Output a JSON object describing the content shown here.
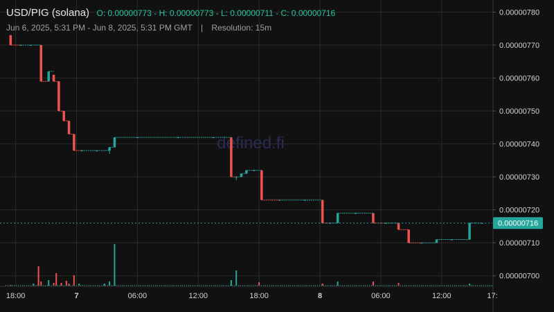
{
  "header": {
    "symbol": "USD/PIG (solana)",
    "ohlc": "O: 0.00000773 - H: 0.00000773 - L: 0.00000711 - C: 0.00000716",
    "range": "Jun 6, 2025, 5:31 PM - Jun 8, 2025, 5:31 PM GMT",
    "separator": "|",
    "resolution": "Resolution: 15m"
  },
  "watermark": "defined.fi",
  "last_price_label": "0.00000716",
  "colors": {
    "up": "#26a69a",
    "down": "#ef5350",
    "background": "#111111",
    "grid": "#2a2a2a"
  },
  "chart_data": {
    "type": "candlestick",
    "x_unit": "hours after Jun 6, 2025 18:00 GMT",
    "xlim": [
      -1.0,
      47.0
    ],
    "ylim": [
      6.97e-06,
      7.82e-06
    ],
    "y_ticks": [
      "0.00000700",
      "0.00000710",
      "0.00000720",
      "0.00000730",
      "0.00000740",
      "0.00000750",
      "0.00000760",
      "0.00000770",
      "0.00000780"
    ],
    "x_ticks": [
      {
        "label": "18:00",
        "t": 0
      },
      {
        "label": "7",
        "t": 6,
        "bold": true
      },
      {
        "label": "06:00",
        "t": 12
      },
      {
        "label": "12:00",
        "t": 18
      },
      {
        "label": "18:00",
        "t": 24
      },
      {
        "label": "8",
        "t": 30,
        "bold": true
      },
      {
        "label": "06:00",
        "t": 36
      },
      {
        "label": "12:00",
        "t": 42
      },
      {
        "label": "17:",
        "t": 47
      }
    ],
    "last_price": 7.16e-06,
    "candles": [
      {
        "t": -0.5,
        "o": 7.73,
        "c": 7.7,
        "h": 7.73,
        "l": 7.7
      },
      {
        "t": 0.5,
        "o": 7.7,
        "c": 7.7,
        "h": 7.7,
        "l": 7.7
      },
      {
        "t": 1.5,
        "o": 7.7,
        "c": 7.7,
        "h": 7.7,
        "l": 7.7
      },
      {
        "t": 2.5,
        "o": 7.7,
        "c": 7.59,
        "h": 7.7,
        "l": 7.59
      },
      {
        "t": 3.25,
        "o": 7.59,
        "c": 7.62,
        "h": 7.62,
        "l": 7.59
      },
      {
        "t": 3.75,
        "o": 7.61,
        "c": 7.59,
        "h": 7.61,
        "l": 7.59
      },
      {
        "t": 4.25,
        "o": 7.59,
        "c": 7.5,
        "h": 7.59,
        "l": 7.5
      },
      {
        "t": 4.75,
        "o": 7.5,
        "c": 7.47,
        "h": 7.5,
        "l": 7.47
      },
      {
        "t": 5.25,
        "o": 7.47,
        "c": 7.43,
        "h": 7.47,
        "l": 7.43
      },
      {
        "t": 5.75,
        "o": 7.43,
        "c": 7.38,
        "h": 7.43,
        "l": 7.38
      },
      {
        "t": 6.5,
        "o": 7.38,
        "c": 7.38,
        "h": 7.38,
        "l": 7.38
      },
      {
        "t": 8.0,
        "o": 7.38,
        "c": 7.38,
        "h": 7.38,
        "l": 7.38
      },
      {
        "t": 9.25,
        "o": 7.38,
        "c": 7.39,
        "h": 7.39,
        "l": 7.37
      },
      {
        "t": 9.75,
        "o": 7.39,
        "c": 7.42,
        "h": 7.42,
        "l": 7.39
      },
      {
        "t": 12.0,
        "o": 7.42,
        "c": 7.42,
        "h": 7.42,
        "l": 7.42
      },
      {
        "t": 16.0,
        "o": 7.42,
        "c": 7.42,
        "h": 7.42,
        "l": 7.42
      },
      {
        "t": 19.5,
        "o": 7.42,
        "c": 7.42,
        "h": 7.42,
        "l": 7.42
      },
      {
        "t": 21.25,
        "o": 7.42,
        "c": 7.3,
        "h": 7.42,
        "l": 7.3
      },
      {
        "t": 21.75,
        "o": 7.3,
        "c": 7.3,
        "h": 7.3,
        "l": 7.29
      },
      {
        "t": 22.25,
        "o": 7.3,
        "c": 7.31,
        "h": 7.31,
        "l": 7.3
      },
      {
        "t": 22.75,
        "o": 7.31,
        "c": 7.32,
        "h": 7.32,
        "l": 7.31
      },
      {
        "t": 23.5,
        "o": 7.32,
        "c": 7.32,
        "h": 7.32,
        "l": 7.32
      },
      {
        "t": 24.25,
        "o": 7.32,
        "c": 7.23,
        "h": 7.32,
        "l": 7.23
      },
      {
        "t": 26.0,
        "o": 7.23,
        "c": 7.23,
        "h": 7.23,
        "l": 7.23
      },
      {
        "t": 28.5,
        "o": 7.23,
        "c": 7.23,
        "h": 7.23,
        "l": 7.23
      },
      {
        "t": 30.25,
        "o": 7.23,
        "c": 7.16,
        "h": 7.23,
        "l": 7.16
      },
      {
        "t": 31.0,
        "o": 7.16,
        "c": 7.16,
        "h": 7.16,
        "l": 7.16
      },
      {
        "t": 31.75,
        "o": 7.16,
        "c": 7.19,
        "h": 7.19,
        "l": 7.16
      },
      {
        "t": 33.5,
        "o": 7.19,
        "c": 7.19,
        "h": 7.19,
        "l": 7.19
      },
      {
        "t": 35.25,
        "o": 7.19,
        "c": 7.16,
        "h": 7.19,
        "l": 7.16
      },
      {
        "t": 36.5,
        "o": 7.16,
        "c": 7.16,
        "h": 7.16,
        "l": 7.16
      },
      {
        "t": 37.75,
        "o": 7.16,
        "c": 7.14,
        "h": 7.16,
        "l": 7.14
      },
      {
        "t": 38.75,
        "o": 7.14,
        "c": 7.1,
        "h": 7.14,
        "l": 7.1
      },
      {
        "t": 40.0,
        "o": 7.1,
        "c": 7.1,
        "h": 7.1,
        "l": 7.1
      },
      {
        "t": 41.5,
        "o": 7.1,
        "c": 7.11,
        "h": 7.11,
        "l": 7.1
      },
      {
        "t": 43.0,
        "o": 7.11,
        "c": 7.11,
        "h": 7.11,
        "l": 7.11
      },
      {
        "t": 44.75,
        "o": 7.11,
        "c": 7.16,
        "h": 7.16,
        "l": 7.11
      },
      {
        "t": 46.0,
        "o": 7.16,
        "c": 7.16,
        "h": 7.16,
        "l": 7.16
      }
    ],
    "volumes": [
      {
        "t": -0.5,
        "v": 1,
        "d": "down"
      },
      {
        "t": 1.75,
        "v": 3,
        "d": "up"
      },
      {
        "t": 2.25,
        "v": 28,
        "d": "down"
      },
      {
        "t": 2.5,
        "v": 6,
        "d": "down"
      },
      {
        "t": 3.25,
        "v": 8,
        "d": "up"
      },
      {
        "t": 3.75,
        "v": 4,
        "d": "down"
      },
      {
        "t": 4.0,
        "v": 18,
        "d": "down"
      },
      {
        "t": 4.5,
        "v": 4,
        "d": "down"
      },
      {
        "t": 5.0,
        "v": 7,
        "d": "down"
      },
      {
        "t": 5.25,
        "v": 3,
        "d": "down"
      },
      {
        "t": 5.75,
        "v": 15,
        "d": "down"
      },
      {
        "t": 6.25,
        "v": 3,
        "d": "up"
      },
      {
        "t": 8.75,
        "v": 3,
        "d": "up"
      },
      {
        "t": 9.25,
        "v": 6,
        "d": "up"
      },
      {
        "t": 9.75,
        "v": 60,
        "d": "up"
      },
      {
        "t": 21.25,
        "v": 8,
        "d": "up"
      },
      {
        "t": 21.75,
        "v": 22,
        "d": "up"
      },
      {
        "t": 24.0,
        "v": 5,
        "d": "down"
      },
      {
        "t": 30.25,
        "v": 3,
        "d": "down"
      },
      {
        "t": 31.75,
        "v": 6,
        "d": "up"
      },
      {
        "t": 35.25,
        "v": 6,
        "d": "down"
      },
      {
        "t": 37.75,
        "v": 4,
        "d": "down"
      },
      {
        "t": 44.75,
        "v": 3,
        "d": "up"
      }
    ]
  }
}
